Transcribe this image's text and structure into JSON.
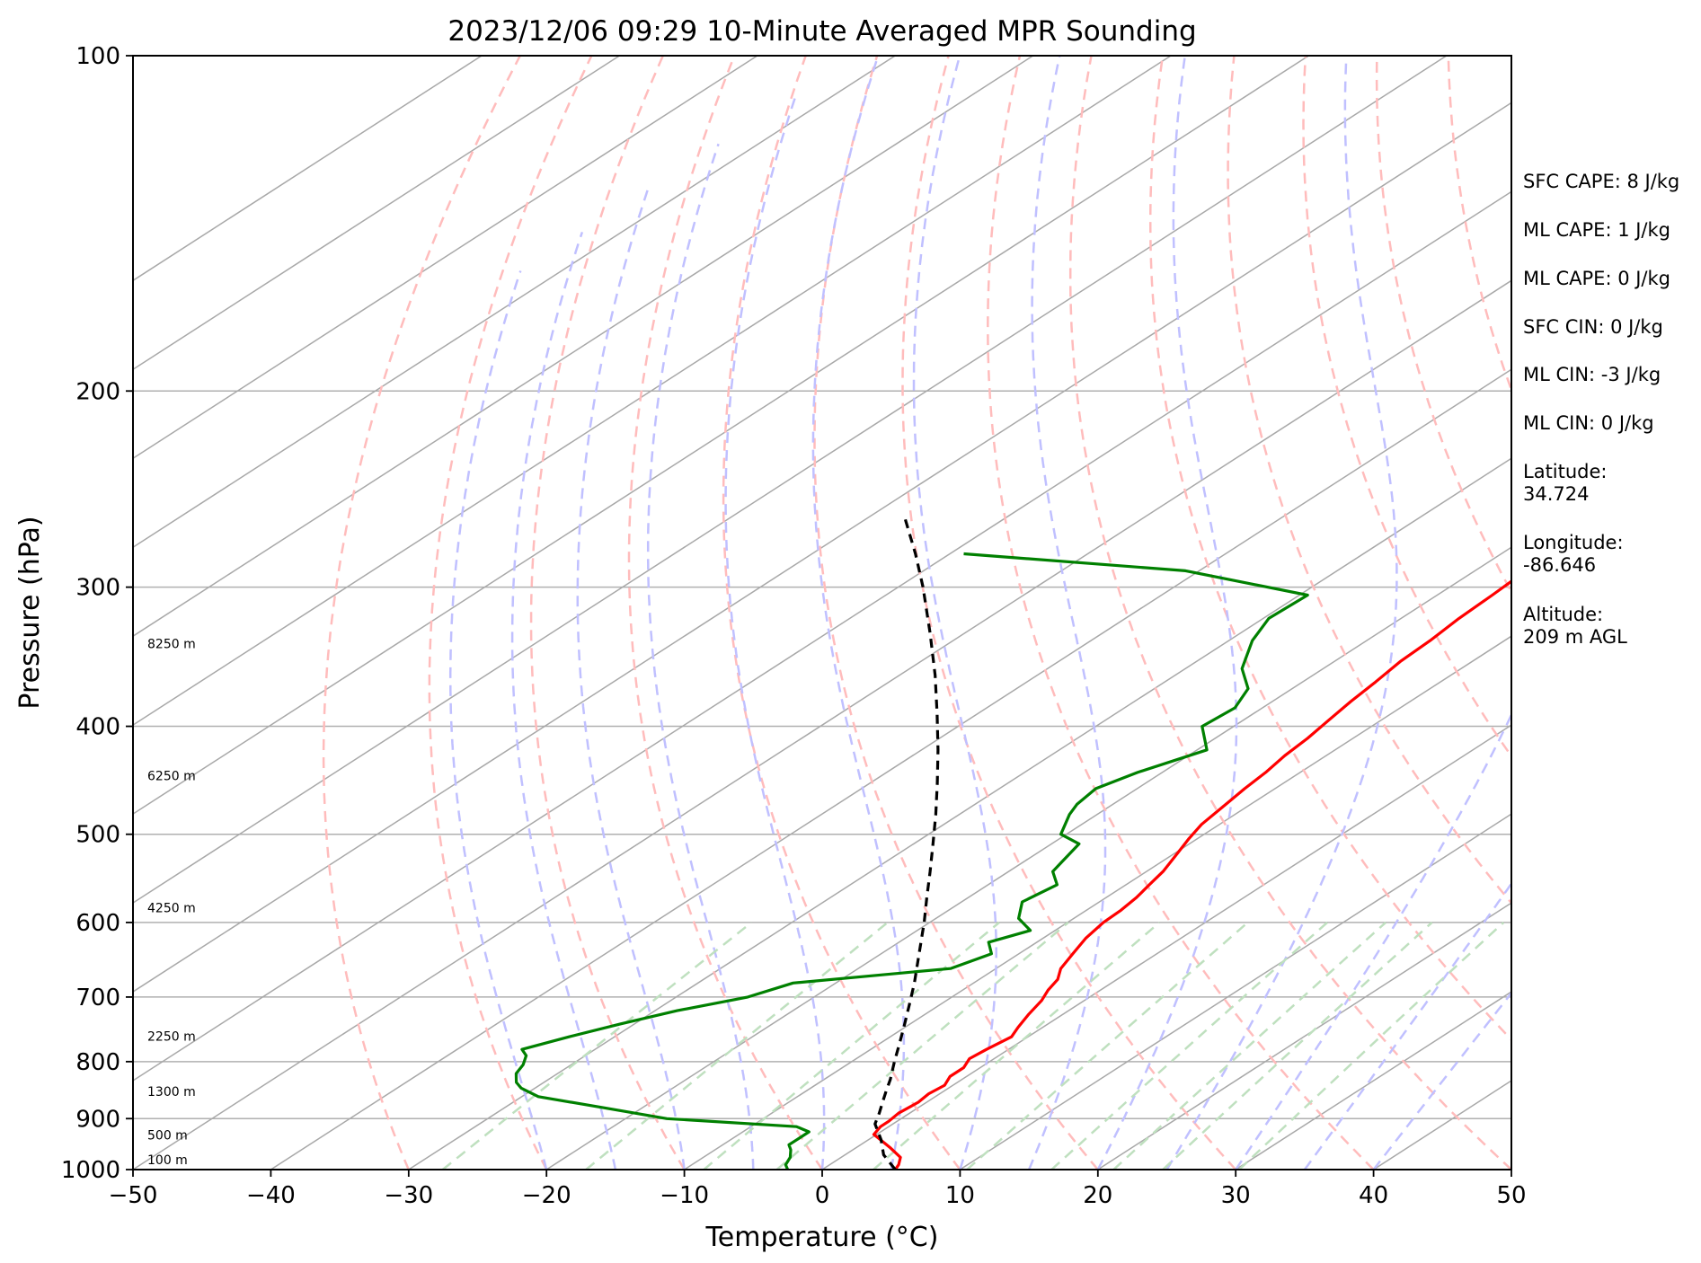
{
  "chart_data": {
    "type": "line",
    "title": "2023/12/06 09:29 10-Minute Averaged MPR Sounding",
    "xlabel": "Temperature (°C)",
    "ylabel": "Pressure (hPa)",
    "xlim": [
      -50,
      50
    ],
    "ylim": [
      1000,
      100
    ],
    "y_scale": "log",
    "skew_t": true,
    "x_ticks": [
      -50,
      -40,
      -30,
      -20,
      -10,
      0,
      10,
      20,
      30,
      40,
      50
    ],
    "x_tick_labels": [
      "−50",
      "−40",
      "−30",
      "−20",
      "−10",
      "0",
      "10",
      "20",
      "30",
      "40",
      "50"
    ],
    "y_ticks": [
      1000,
      900,
      800,
      700,
      600,
      500,
      400,
      300,
      200,
      100
    ],
    "y_tick_labels": [
      "1000",
      "900",
      "800",
      "700",
      "600",
      "500",
      "400",
      "300",
      "200",
      "100"
    ],
    "horizontal_grid": true,
    "series": [
      {
        "kind": "temperature",
        "color": "#ff0000",
        "p": [
          1000,
          990,
          975,
          955,
          930,
          915,
          905,
          890,
          870,
          855,
          840,
          825,
          810,
          795,
          780,
          760,
          745,
          725,
          705,
          690,
          675,
          660,
          640,
          620,
          600,
          585,
          570,
          555,
          540,
          520,
          505,
          490,
          470,
          455,
          440,
          425,
          410,
          395,
          380,
          365,
          350,
          335,
          320,
          305,
          295,
          285,
          275,
          265,
          255
        ],
        "t": [
          5.3,
          5.0,
          4.3,
          2.4,
          -0.2,
          -0.6,
          -0.6,
          -0.8,
          -0.6,
          -0.8,
          -0.6,
          -1.2,
          -1.2,
          -1.8,
          -1.6,
          -1.2,
          -1.8,
          -2.5,
          -3.1,
          -3.8,
          -4.3,
          -5.3,
          -6.1,
          -6.9,
          -7.4,
          -7.5,
          -7.8,
          -8.3,
          -8.8,
          -9.8,
          -10.6,
          -11.3,
          -11.8,
          -12.2,
          -12.5,
          -13.0,
          -13.3,
          -13.8,
          -14.3,
          -14.7,
          -15.2,
          -15.4,
          -15.8,
          -16.0,
          -16.2,
          -16.3,
          -15.9,
          -16.0,
          -16.4
        ]
      },
      {
        "kind": "dewpoint",
        "color": "#008000",
        "p": [
          1000,
          990,
          975,
          960,
          950,
          940,
          925,
          915,
          900,
          880,
          860,
          845,
          835,
          820,
          805,
          790,
          780,
          760,
          740,
          720,
          700,
          680,
          660,
          640,
          625,
          610,
          595,
          575,
          555,
          540,
          530,
          510,
          500,
          480,
          470,
          455,
          440,
          420,
          400,
          385,
          370,
          355,
          335,
          320,
          305,
          290,
          280
        ],
        "td": [
          -2.5,
          -3.2,
          -3.7,
          -4.5,
          -5.2,
          -5.2,
          -5.2,
          -6.7,
          -17.0,
          -22.8,
          -28.8,
          -31.0,
          -32.0,
          -33.0,
          -33.5,
          -34.3,
          -35.3,
          -33.3,
          -31.0,
          -28.4,
          -24.8,
          -23.1,
          -13.3,
          -12.0,
          -13.5,
          -11.8,
          -14.0,
          -15.6,
          -15.0,
          -16.8,
          -17.2,
          -18.0,
          -20.4,
          -22.0,
          -22.6,
          -23.0,
          -21.8,
          -19.3,
          -22.3,
          -22.0,
          -23.2,
          -25.9,
          -28.3,
          -29.6,
          -29.4,
          -41.0,
          -59.0
        ]
      },
      {
        "kind": "parcel",
        "color": "#000000",
        "style": "dashed",
        "p": [
          1000,
          970,
          940,
          910,
          890,
          870,
          850,
          830,
          800,
          770,
          740,
          710,
          680,
          650,
          620,
          600,
          570,
          540,
          510,
          480,
          450,
          420,
          390,
          360,
          330,
          300,
          280,
          260
        ],
        "t": [
          5.3,
          2.8,
          0.9,
          -1.3,
          -2.2,
          -3.2,
          -4.2,
          -5.2,
          -6.9,
          -8.6,
          -10.4,
          -12.3,
          -14.3,
          -16.5,
          -18.8,
          -20.4,
          -23.0,
          -25.7,
          -28.6,
          -31.7,
          -35.1,
          -38.8,
          -42.9,
          -47.4,
          -52.5,
          -58.2,
          -62.5,
          -67.3
        ]
      }
    ],
    "height_labels": [
      {
        "p": 1000,
        "label": "100 m"
      },
      {
        "p": 950,
        "label": "500 m"
      },
      {
        "p": 868,
        "label": "1300 m"
      },
      {
        "p": 775,
        "label": "2250 m"
      },
      {
        "p": 594,
        "label": "4250 m"
      },
      {
        "p": 452,
        "label": "6250 m"
      },
      {
        "p": 344,
        "label": "8250 m"
      }
    ],
    "dry_adiabats_theta_c": [
      -30,
      -20,
      -10,
      0,
      10,
      20,
      30,
      40,
      50,
      60,
      70,
      80,
      90,
      100,
      110,
      120,
      130,
      140,
      150,
      160,
      170,
      180
    ],
    "moist_adiabats_c": [
      -20,
      -15,
      -10,
      -5,
      0,
      5,
      10,
      15,
      20,
      25,
      30,
      35,
      40
    ],
    "mixing_ratio_lines_gkg": [
      0.4,
      1,
      2,
      3,
      5,
      8,
      12,
      16,
      20,
      28
    ],
    "colors": {
      "isotherm": "#a8a8a8",
      "grid": "#b0b0b0",
      "dry_adiabat": "#ffbcbc",
      "moist_adiabat": "#c0c0ff",
      "mixing_ratio": "#bfe0bf"
    }
  },
  "stats": [
    "SFC CAPE: 8 J/kg",
    "ML CAPE: 1 J/kg",
    "ML CAPE: 0 J/kg",
    "SFC CIN: 0 J/kg",
    "ML CIN: -3 J/kg",
    "ML CIN: 0 J/kg",
    "Latitude:\n34.724",
    "Longitude:\n-86.646",
    "Altitude:\n209 m AGL"
  ]
}
